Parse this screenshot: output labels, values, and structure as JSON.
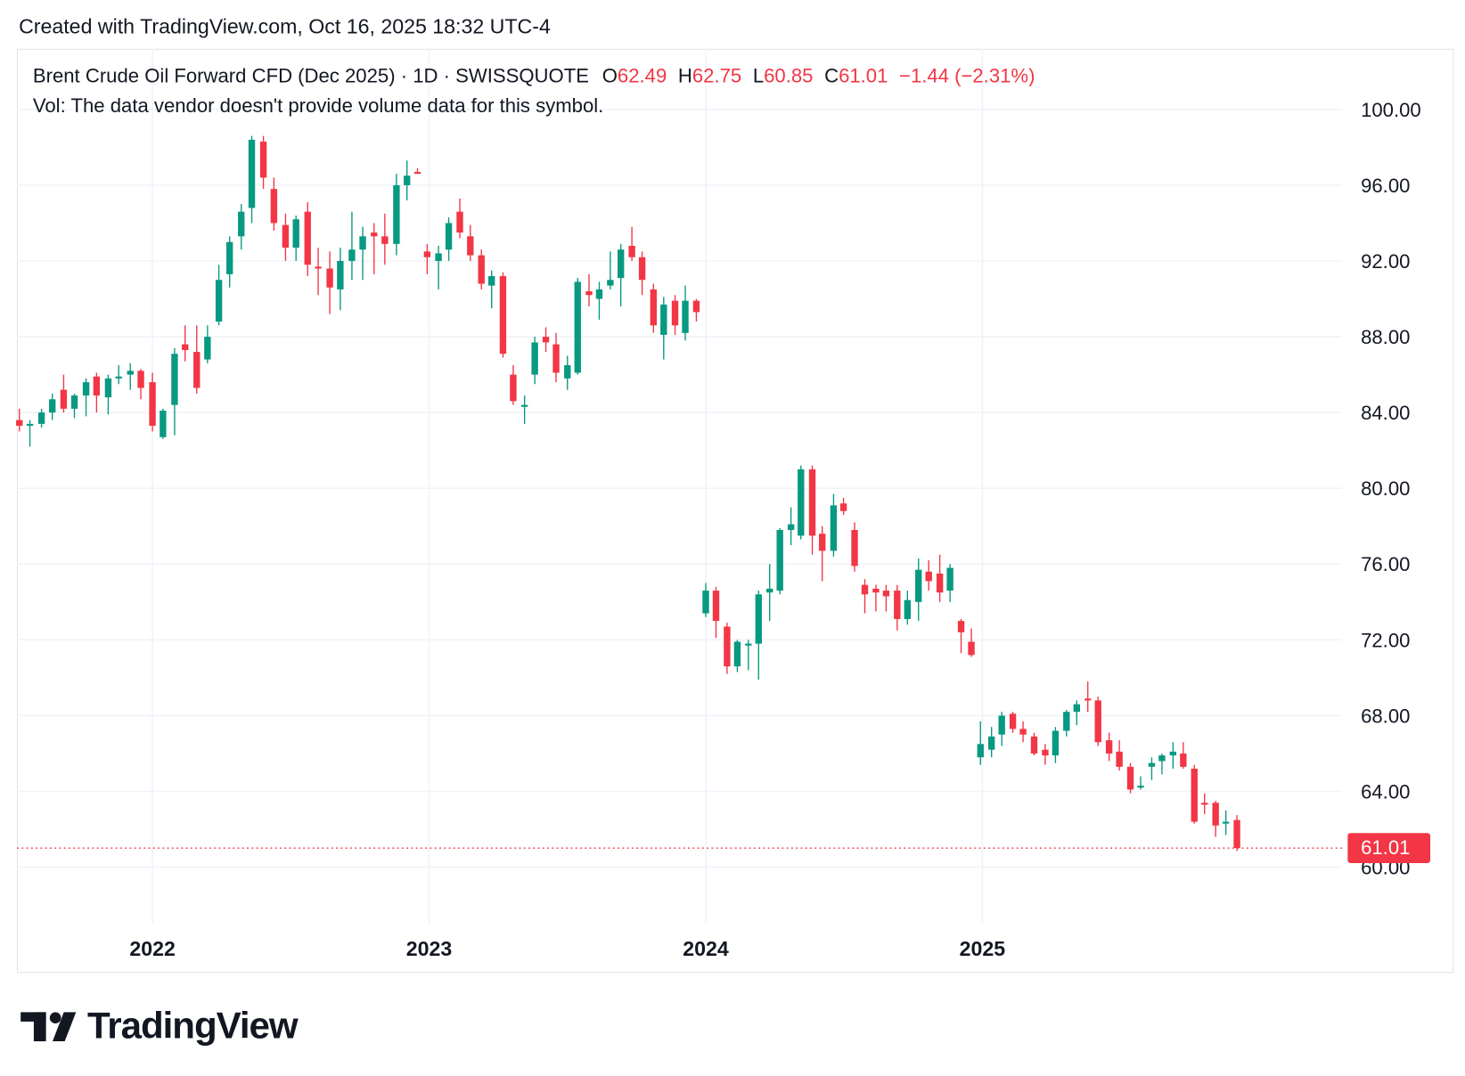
{
  "header": {
    "created": "Created with TradingView.com, Oct 16, 2025 18:32 UTC-4"
  },
  "legend": {
    "symbol": "Brent Crude Oil Forward CFD (Dec 2025) · 1D · SWISSQUOTE",
    "open_label": "O",
    "open": "62.49",
    "high_label": "H",
    "high": "62.75",
    "low_label": "L",
    "low": "60.85",
    "close_label": "C",
    "close": "61.01",
    "change": "−1.44 (−2.31%)",
    "volume_note": "Vol: The data vendor doesn't provide volume data for this symbol."
  },
  "chart_data": {
    "type": "candlestick",
    "up_color": "#089981",
    "down_color": "#f23645",
    "grid": true,
    "x": [
      2021.519,
      2021.557,
      2021.599,
      2021.638,
      2021.679,
      2021.718,
      2021.76,
      2021.798,
      2021.84,
      2021.878,
      2021.92,
      2021.958,
      2022,
      2022.038,
      2022.08,
      2022.118,
      2022.16,
      2022.199,
      2022.24,
      2022.279,
      2022.321,
      2022.359,
      2022.401,
      2022.439,
      2022.481,
      2022.519,
      2022.561,
      2022.599,
      2022.641,
      2022.679,
      2022.721,
      2022.76,
      2022.801,
      2022.84,
      2022.882,
      2022.92,
      2022.958,
      2022.993,
      2023.034,
      2023.071,
      2023.111,
      2023.149,
      2023.189,
      2023.226,
      2023.267,
      2023.304,
      2023.345,
      2023.382,
      2023.422,
      2023.459,
      2023.5,
      2023.537,
      2023.578,
      2023.615,
      2023.655,
      2023.693,
      2023.733,
      2023.77,
      2023.811,
      2023.848,
      2023.889,
      2023.926,
      2023.966,
      2024,
      2024.037,
      2024.077,
      2024.114,
      2024.154,
      2024.191,
      2024.231,
      2024.268,
      2024.308,
      2024.344,
      2024.385,
      2024.421,
      2024.462,
      2024.498,
      2024.538,
      2024.575,
      2024.615,
      2024.652,
      2024.692,
      2024.729,
      2024.769,
      2024.806,
      2024.846,
      2024.883,
      2024.923,
      2024.96,
      2024.993,
      2025.033,
      2025.07,
      2025.11,
      2025.147,
      2025.187,
      2025.227,
      2025.264,
      2025.304,
      2025.341,
      2025.381,
      2025.418,
      2025.458,
      2025.495,
      2025.535,
      2025.572,
      2025.612,
      2025.649,
      2025.689,
      2025.726,
      2025.766,
      2025.803,
      2025.843,
      2025.88,
      2025.92
    ],
    "open": [
      83.6,
      83.3,
      83.4,
      84.0,
      85.2,
      84.2,
      84.9,
      85.9,
      84.8,
      85.8,
      86.0,
      86.2,
      85.6,
      82.7,
      84.4,
      87.6,
      87.2,
      86.8,
      88.8,
      91.3,
      93.3,
      94.8,
      98.3,
      95.8,
      93.9,
      92.7,
      94.6,
      91.7,
      91.6,
      90.5,
      92.0,
      92.6,
      93.5,
      93.3,
      92.9,
      96.0,
      96.7,
      92.5,
      92.0,
      92.6,
      94.6,
      93.3,
      92.3,
      90.7,
      91.2,
      86.0,
      84.3,
      86.0,
      88.0,
      87.6,
      85.8,
      86.1,
      90.4,
      90.0,
      90.7,
      91.1,
      92.8,
      92.2,
      90.5,
      88.1,
      89.9,
      88.2,
      89.9,
      73.4,
      74.6,
      72.7,
      70.6,
      71.7,
      71.8,
      74.5,
      74.6,
      77.8,
      77.5,
      81.0,
      77.6,
      76.7,
      79.2,
      77.8,
      74.9,
      74.7,
      74.6,
      74.6,
      73.1,
      74.0,
      75.6,
      75.5,
      74.6,
      73.0,
      71.9,
      65.8,
      66.2,
      67.0,
      68.1,
      67.3,
      66.9,
      66.2,
      65.9,
      67.2,
      68.2,
      68.9,
      68.8,
      66.7,
      66.1,
      65.3,
      64.2,
      65.3,
      65.6,
      65.9,
      66.0,
      65.2,
      63.4,
      63.4,
      62.3,
      62.49
    ],
    "high": [
      84.2,
      83.6,
      84.2,
      85.0,
      86.0,
      85.0,
      85.8,
      86.1,
      86.0,
      86.5,
      86.6,
      86.3,
      86.1,
      84.2,
      87.4,
      88.6,
      88.6,
      88.6,
      91.8,
      93.3,
      95.0,
      98.6,
      98.6,
      96.4,
      94.5,
      94.4,
      95.1,
      92.7,
      92.5,
      92.7,
      94.6,
      93.8,
      94.0,
      94.5,
      96.6,
      97.3,
      96.9,
      92.9,
      92.8,
      94.3,
      95.3,
      93.9,
      92.6,
      91.5,
      91.4,
      86.5,
      84.9,
      88.0,
      88.5,
      88.2,
      87.0,
      91.1,
      91.3,
      90.9,
      92.5,
      92.9,
      93.8,
      92.5,
      90.8,
      90.1,
      90.2,
      90.7,
      90.0,
      75.0,
      74.8,
      72.9,
      72.0,
      72.0,
      74.6,
      76.0,
      77.9,
      79.0,
      81.2,
      81.2,
      78.0,
      79.7,
      79.5,
      78.2,
      75.2,
      74.9,
      74.9,
      74.9,
      74.6,
      76.3,
      76.2,
      76.5,
      76.0,
      73.1,
      72.6,
      67.7,
      67.4,
      68.2,
      68.2,
      67.7,
      67.1,
      66.5,
      67.4,
      68.3,
      68.8,
      69.8,
      69.0,
      67.1,
      66.7,
      65.5,
      64.8,
      65.8,
      66.0,
      66.6,
      66.6,
      65.4,
      63.9,
      63.5,
      63.0,
      62.75
    ],
    "low": [
      83.0,
      82.2,
      83.2,
      83.6,
      84.0,
      83.7,
      83.8,
      84.0,
      83.9,
      85.5,
      85.2,
      84.7,
      83.0,
      82.6,
      82.8,
      86.7,
      85.0,
      86.6,
      88.6,
      90.6,
      92.6,
      94.0,
      95.8,
      93.6,
      92.0,
      92.0,
      91.2,
      90.2,
      89.2,
      89.4,
      91.0,
      91.0,
      91.3,
      91.8,
      92.3,
      95.2,
      96.6,
      91.3,
      90.5,
      92.0,
      93.2,
      92.0,
      90.5,
      89.5,
      86.9,
      84.4,
      83.4,
      85.5,
      87.2,
      85.6,
      85.2,
      86.0,
      89.6,
      88.9,
      90.5,
      89.6,
      92.0,
      90.2,
      88.2,
      86.8,
      88.1,
      87.8,
      88.8,
      73.2,
      72.1,
      70.2,
      70.3,
      70.4,
      69.9,
      73.0,
      74.4,
      77.0,
      77.3,
      76.5,
      75.1,
      76.4,
      78.6,
      75.6,
      73.4,
      73.5,
      73.5,
      72.5,
      72.8,
      73.0,
      74.6,
      74.0,
      74.0,
      71.3,
      71.1,
      65.4,
      65.8,
      66.4,
      67.1,
      66.6,
      65.9,
      65.4,
      65.5,
      66.9,
      67.5,
      68.2,
      66.4,
      65.6,
      65.1,
      63.9,
      64.1,
      64.6,
      64.9,
      65.2,
      65.2,
      62.3,
      62.8,
      61.6,
      61.7,
      60.85
    ],
    "close": [
      83.3,
      83.4,
      84.0,
      84.7,
      84.2,
      84.9,
      85.6,
      84.9,
      85.8,
      85.9,
      86.2,
      85.3,
      83.3,
      84.1,
      87.1,
      87.3,
      85.3,
      88.0,
      91.0,
      93.0,
      94.6,
      98.4,
      96.4,
      94.0,
      92.7,
      94.2,
      91.8,
      91.6,
      90.6,
      92.0,
      92.6,
      93.3,
      93.3,
      92.9,
      96.0,
      96.5,
      96.6,
      92.2,
      92.4,
      94.0,
      93.5,
      92.3,
      90.8,
      91.2,
      87.1,
      84.6,
      84.4,
      87.7,
      87.7,
      86.1,
      86.5,
      90.9,
      90.2,
      90.5,
      91.0,
      92.6,
      92.2,
      91.0,
      88.6,
      89.7,
      88.6,
      89.9,
      89.3,
      74.6,
      73.0,
      70.6,
      71.9,
      71.8,
      74.4,
      74.7,
      77.8,
      78.1,
      81.0,
      77.5,
      76.7,
      79.1,
      78.8,
      75.9,
      74.4,
      74.5,
      74.3,
      73.1,
      74.1,
      75.7,
      75.1,
      74.5,
      75.8,
      72.4,
      71.2,
      66.5,
      66.9,
      68.0,
      67.3,
      67.0,
      66.0,
      65.9,
      67.2,
      68.2,
      68.6,
      68.8,
      66.6,
      66.0,
      65.3,
      64.1,
      64.3,
      65.5,
      65.9,
      66.1,
      65.3,
      62.4,
      63.3,
      62.2,
      62.4,
      61.01
    ],
    "xlim": [
      2021.51,
      2026.3
    ],
    "xticks": [
      2022,
      2023,
      2024,
      2025
    ],
    "ylim": [
      57.0,
      103.2
    ],
    "yticks": [
      {
        "value": 60,
        "label": "60.00"
      },
      {
        "value": 64,
        "label": "64.00"
      },
      {
        "value": 68,
        "label": "68.00"
      },
      {
        "value": 72,
        "label": "72.00"
      },
      {
        "value": 76,
        "label": "76.00"
      },
      {
        "value": 80,
        "label": "80.00"
      },
      {
        "value": 84,
        "label": "84.00"
      },
      {
        "value": 88,
        "label": "88.00"
      },
      {
        "value": 92,
        "label": "92.00"
      },
      {
        "value": 96,
        "label": "96.00"
      },
      {
        "value": 100,
        "label": "100.00"
      }
    ],
    "last_price": {
      "value": 61.01,
      "label": "61.01"
    }
  },
  "footer": {
    "brand": "TradingView"
  }
}
